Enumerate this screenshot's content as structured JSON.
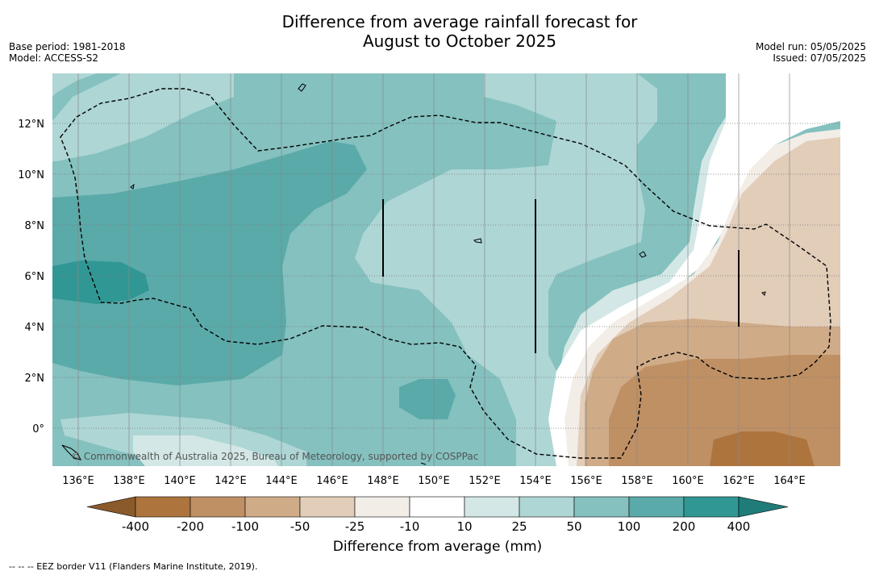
{
  "title_line1": "Difference from average rainfall forecast for",
  "title_line2": "August to October 2025",
  "base_period": "Base period: 1981-2018",
  "model": "Model: ACCESS-S2",
  "model_run": "Model run: 05/05/2025",
  "issued": "Issued: 07/05/2025",
  "copyright": "© Commonwealth of Australia 2025, Bureau of Meteorology, supported by COSPPac",
  "lon_labels": [
    "136°E",
    "138°E",
    "140°E",
    "142°E",
    "144°E",
    "146°E",
    "148°E",
    "150°E",
    "152°E",
    "154°E",
    "156°E",
    "158°E",
    "160°E",
    "162°E",
    "164°E"
  ],
  "lat_labels": [
    "12°N",
    "10°N",
    "8°N",
    "6°N",
    "4°N",
    "2°N",
    "0°"
  ],
  "colorbar": {
    "label": "Difference from average (mm)",
    "ticks": [
      "-400",
      "-200",
      "-100",
      "-50",
      "-25",
      "-10",
      "10",
      "25",
      "50",
      "100",
      "200",
      "400"
    ],
    "colors": [
      "#8b5a2b",
      "#ad743e",
      "#bf9064",
      "#d0ab88",
      "#e2cdb9",
      "#f3ede7",
      "#ffffff",
      "#d3e8e6",
      "#aed6d5",
      "#84c1bf",
      "#5aaaa9",
      "#319794",
      "#1f7c79"
    ]
  },
  "footer": "--  --  -- EEZ border V11 (Flanders Marine Institute, 2019)."
}
